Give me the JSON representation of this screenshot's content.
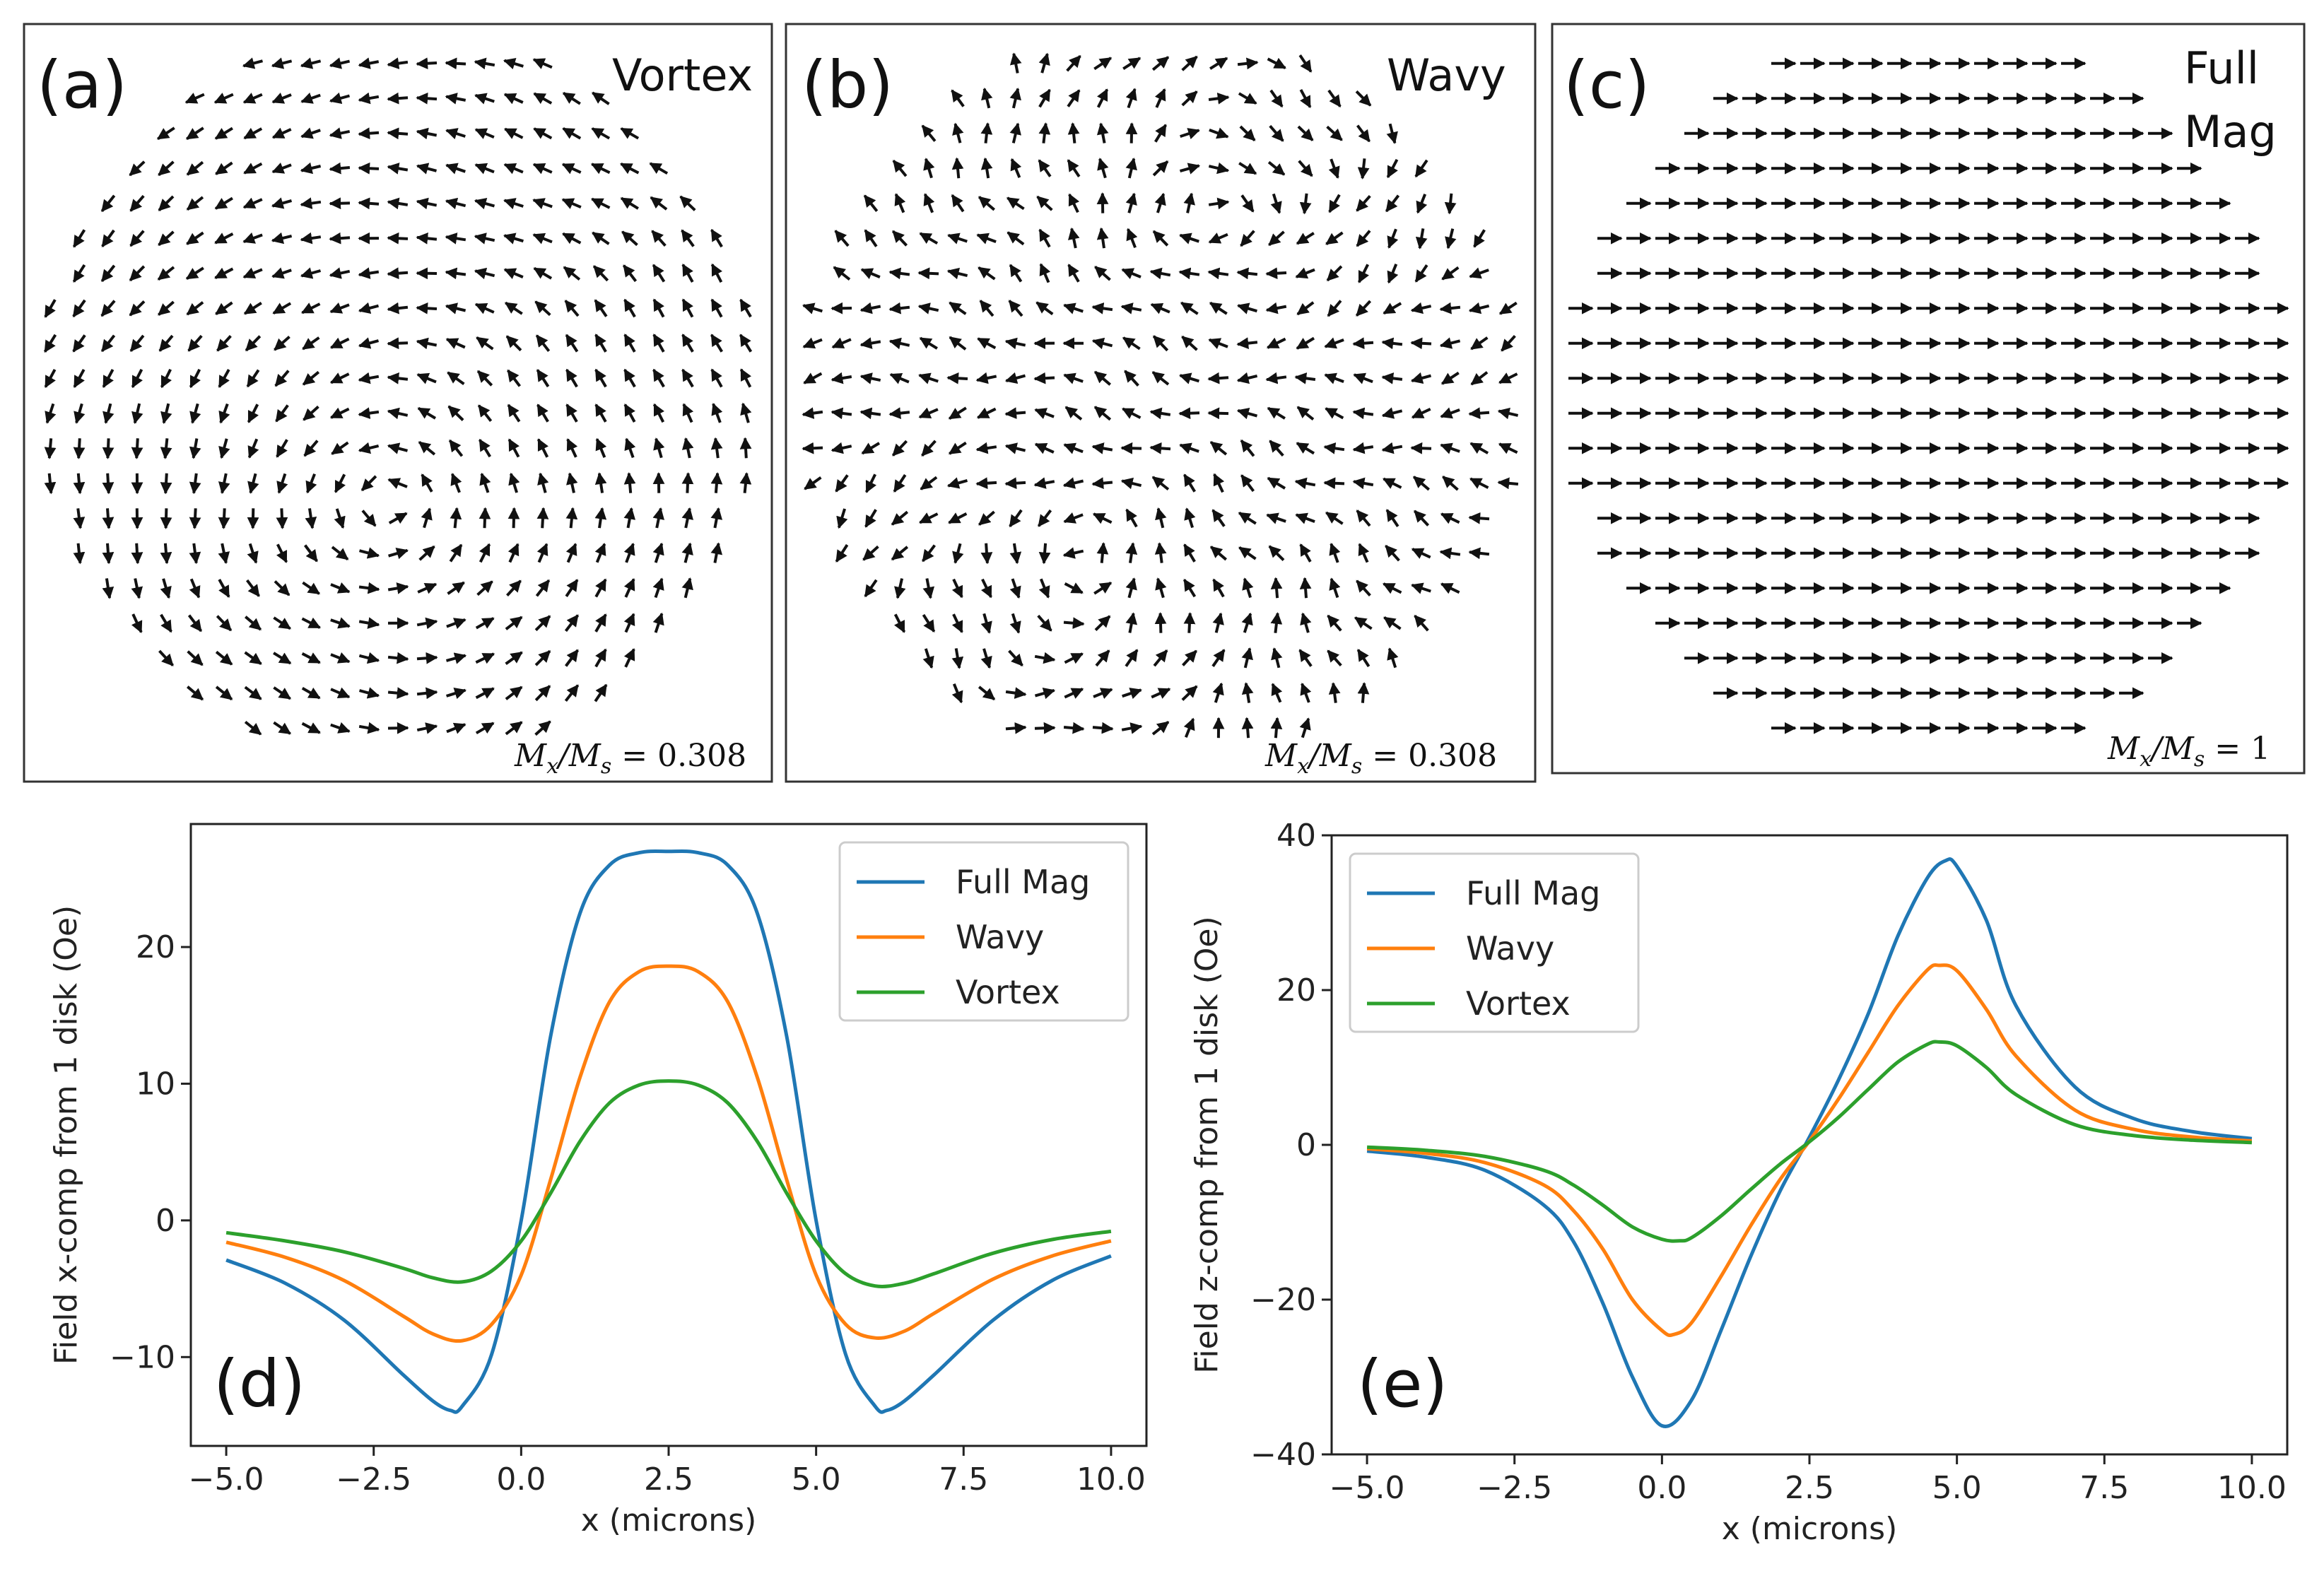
{
  "panels": [
    {
      "id": "a",
      "label": "(a)",
      "title": "Vortex",
      "annotation_lhs": "M",
      "annotation_sub1": "x",
      "annotation_mid": "/M",
      "annotation_sub2": "s",
      "annotation_rhs": " = 0.308",
      "pattern": "vortex"
    },
    {
      "id": "b",
      "label": "(b)",
      "title": "Wavy",
      "annotation_lhs": "M",
      "annotation_sub1": "x",
      "annotation_mid": "/M",
      "annotation_sub2": "s",
      "annotation_rhs": " = 0.308",
      "pattern": "wavy"
    },
    {
      "id": "c",
      "label": "(c)",
      "title_line1": "Full",
      "title_line2": "Mag",
      "annotation_lhs": "M",
      "annotation_sub1": "x",
      "annotation_mid": "/M",
      "annotation_sub2": "s",
      "annotation_rhs": " = 1",
      "pattern": "uniform"
    }
  ],
  "colors": {
    "full_mag": "#1f77b4",
    "wavy": "#ff7f0e",
    "vortex": "#2ca02c"
  },
  "chart_data": [
    {
      "type": "line",
      "panel_label": "(d)",
      "xlabel": "x (microns)",
      "ylabel": "Field x-comp from 1 disk (Oe)",
      "xlim": [
        -5.6,
        10.6
      ],
      "ylim": [
        -16.5,
        29
      ],
      "xticks": [
        -5.0,
        -2.5,
        0.0,
        2.5,
        5.0,
        7.5,
        10.0
      ],
      "xtick_labels": [
        "−5.0",
        "−2.5",
        "0.0",
        "2.5",
        "5.0",
        "7.5",
        "10.0"
      ],
      "yticks": [
        -10,
        0,
        10,
        20
      ],
      "ytick_labels": [
        "−10",
        "0",
        "10",
        "20"
      ],
      "legend_position": "top-right",
      "series": [
        {
          "name": "Full Mag",
          "color": "#1f77b4",
          "x": [
            -5,
            -4,
            -3,
            -2,
            -1.5,
            -1.2,
            -1,
            -0.5,
            0,
            0.5,
            1,
            1.5,
            2,
            2.5,
            3,
            3.5,
            4,
            4.5,
            5,
            5.5,
            6,
            6.2,
            6.5,
            7,
            8,
            9,
            10
          ],
          "y": [
            -2.9,
            -4.6,
            -7.3,
            -11.3,
            -13.2,
            -13.9,
            -13.6,
            -9.8,
            0,
            13.5,
            22.5,
            26,
            26.9,
            27,
            26.9,
            26,
            22.5,
            13.5,
            0,
            -9.8,
            -13.6,
            -13.9,
            -13.2,
            -11.3,
            -7.3,
            -4.4,
            -2.6
          ]
        },
        {
          "name": "Wavy",
          "color": "#ff7f0e",
          "x": [
            -5,
            -4,
            -3,
            -2,
            -1.5,
            -1,
            -0.5,
            0,
            0.5,
            1,
            1.5,
            2,
            2.5,
            3,
            3.5,
            4,
            4.5,
            5,
            5.5,
            6,
            6.5,
            7,
            8,
            9,
            10
          ],
          "y": [
            -1.6,
            -2.7,
            -4.4,
            -7,
            -8.3,
            -8.8,
            -7.6,
            -4,
            3,
            10.5,
            16,
            18.2,
            18.6,
            18.2,
            16,
            10.5,
            3,
            -4,
            -7.6,
            -8.6,
            -8.1,
            -6.8,
            -4.3,
            -2.6,
            -1.5
          ]
        },
        {
          "name": "Vortex",
          "color": "#2ca02c",
          "x": [
            -5,
            -4,
            -3,
            -2,
            -1.5,
            -1,
            -0.5,
            0,
            0.5,
            1,
            1.5,
            2,
            2.5,
            3,
            3.5,
            4,
            4.5,
            5,
            5.5,
            6,
            6.5,
            7,
            8,
            9,
            10
          ],
          "y": [
            -0.9,
            -1.5,
            -2.3,
            -3.5,
            -4.2,
            -4.5,
            -3.7,
            -1.5,
            2,
            5.8,
            8.6,
            9.9,
            10.2,
            9.9,
            8.6,
            5.8,
            2,
            -1.5,
            -3.9,
            -4.8,
            -4.6,
            -3.9,
            -2.4,
            -1.4,
            -0.8
          ]
        }
      ]
    },
    {
      "type": "line",
      "panel_label": "(e)",
      "xlabel": "x (microns)",
      "ylabel": "Field z-comp from 1 disk (Oe)",
      "xlim": [
        -5.6,
        10.6
      ],
      "ylim": [
        -40,
        40
      ],
      "xticks": [
        -5.0,
        -2.5,
        0.0,
        2.5,
        5.0,
        7.5,
        10.0
      ],
      "xtick_labels": [
        "−5.0",
        "−2.5",
        "0.0",
        "2.5",
        "5.0",
        "7.5",
        "10.0"
      ],
      "yticks": [
        -40,
        -20,
        0,
        20,
        40
      ],
      "ytick_labels": [
        "−40",
        "−20",
        "0",
        "20",
        "40"
      ],
      "legend_position": "top-left",
      "series": [
        {
          "name": "Full Mag",
          "color": "#1f77b4",
          "x": [
            -5,
            -4,
            -3,
            -2,
            -1.5,
            -1,
            -0.5,
            0,
            0.5,
            1,
            1.5,
            2,
            2.5,
            3,
            3.5,
            4,
            4.5,
            4.8,
            5,
            5.5,
            6,
            7,
            8,
            9,
            10
          ],
          "y": [
            -0.8,
            -1.6,
            -3.3,
            -7.8,
            -12.5,
            -20.5,
            -30,
            -36.3,
            -33,
            -24,
            -14.5,
            -6,
            1,
            8.5,
            17,
            27,
            34.5,
            36.7,
            36,
            29,
            18,
            7.5,
            3.4,
            1.7,
            0.8
          ]
        },
        {
          "name": "Wavy",
          "color": "#ff7f0e",
          "x": [
            -5,
            -4,
            -3,
            -2,
            -1.5,
            -1,
            -0.5,
            0,
            0.2,
            0.5,
            1,
            1.5,
            2,
            2.5,
            3,
            3.5,
            4,
            4.5,
            4.7,
            5,
            5.5,
            6,
            7,
            8,
            9,
            10
          ],
          "y": [
            -0.5,
            -1.1,
            -2.3,
            -5.2,
            -8.5,
            -13.5,
            -20,
            -24,
            -24.5,
            -23,
            -17,
            -10.5,
            -4.5,
            0.5,
            6,
            12,
            18,
            22.6,
            23.2,
            22.5,
            17.5,
            11.5,
            4.5,
            2,
            1,
            0.5
          ]
        },
        {
          "name": "Vortex",
          "color": "#2ca02c",
          "x": [
            -5,
            -4,
            -3,
            -2,
            -1.5,
            -1,
            -0.5,
            0,
            0.3,
            0.5,
            1,
            1.5,
            2,
            2.5,
            3,
            3.5,
            4,
            4.5,
            4.7,
            5,
            5.5,
            6,
            7,
            8,
            9,
            10
          ],
          "y": [
            -0.3,
            -0.7,
            -1.5,
            -3.3,
            -5.2,
            -7.8,
            -10.6,
            -12.2,
            -12.4,
            -12,
            -9.2,
            -5.8,
            -2.5,
            0.4,
            3.6,
            7.2,
            10.7,
            13,
            13.3,
            12.8,
            10,
            6.5,
            2.6,
            1.2,
            0.6,
            0.3
          ]
        }
      ]
    }
  ]
}
